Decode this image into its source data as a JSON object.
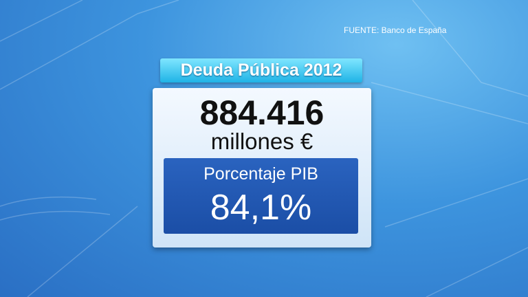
{
  "source": "FUENTE: Banco de España",
  "title": "Deuda Pública 2012",
  "amount": {
    "value": "884.416",
    "unit": "millones €"
  },
  "gdp_share": {
    "label": "Porcentaje PIB",
    "value": "84,1%"
  }
}
